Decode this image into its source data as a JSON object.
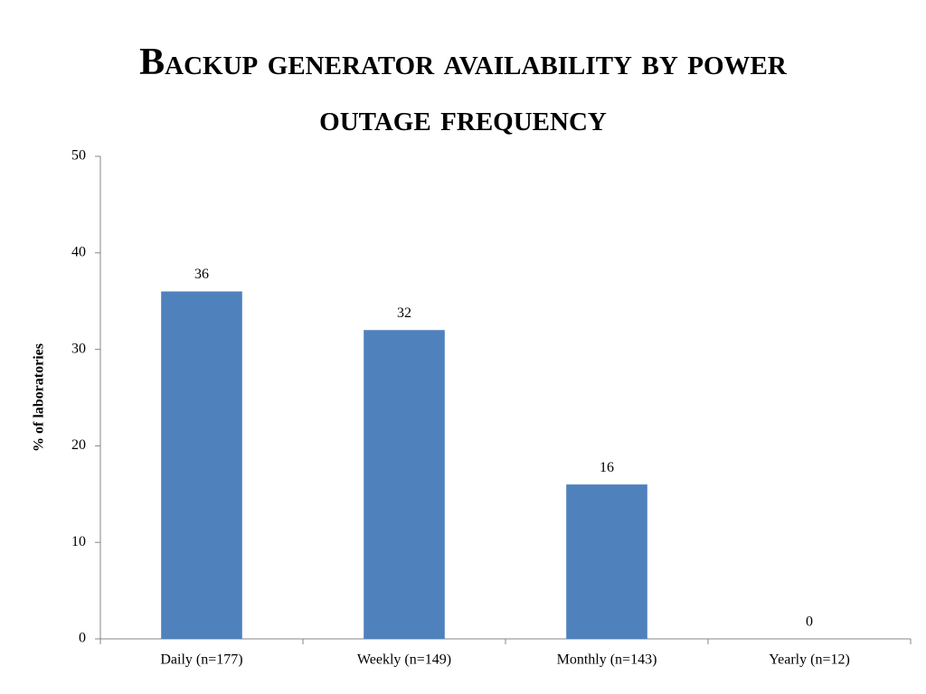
{
  "chart_data": {
    "type": "bar",
    "title": "Backup generator availability by power outage frequency",
    "y_label": "% of laboratories",
    "categories": [
      "Daily (n=177)",
      "Weekly (n=149)",
      "Monthly (n=143)",
      "Yearly (n=12)"
    ],
    "values": [
      36,
      32,
      16,
      0
    ],
    "color": "#4f81bd",
    "ylim": [
      0,
      50
    ],
    "yticks": [
      0,
      10,
      20,
      30,
      40,
      50
    ],
    "grid": false
  }
}
